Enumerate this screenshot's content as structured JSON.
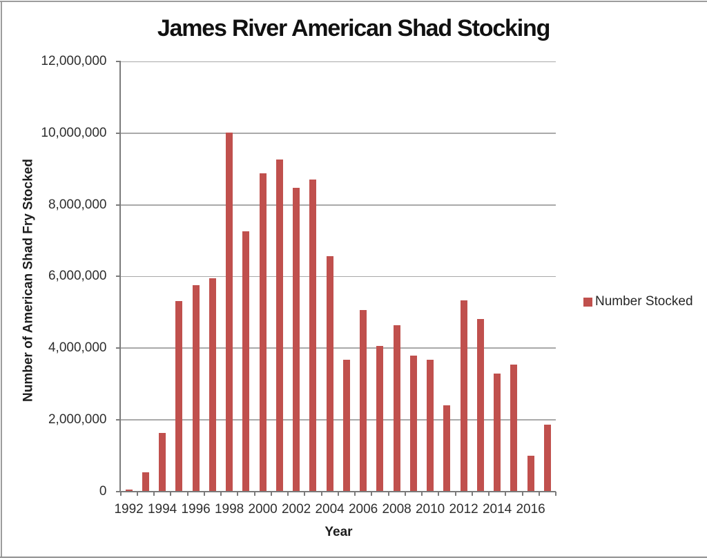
{
  "chart_data": {
    "type": "bar",
    "title": "James River American Shad Stocking",
    "xlabel": "Year",
    "ylabel": "Number of American Shad Fry Stocked",
    "legend_entries": [
      "Number Stocked"
    ],
    "legend_position": "right",
    "categories": [
      1992,
      1993,
      1994,
      1995,
      1996,
      1997,
      1998,
      1999,
      2000,
      2001,
      2002,
      2003,
      2004,
      2005,
      2006,
      2007,
      2008,
      2009,
      2010,
      2011,
      2012,
      2013,
      2014,
      2015,
      2016,
      2017
    ],
    "series": [
      {
        "name": "Number Stocked",
        "values": [
          50000,
          530000,
          1630000,
          5320000,
          5760000,
          5950000,
          10020000,
          7270000,
          8890000,
          9260000,
          8480000,
          8700000,
          6570000,
          3670000,
          5060000,
          4060000,
          4640000,
          3790000,
          3670000,
          2410000,
          5340000,
          4810000,
          3290000,
          3540000,
          1000000,
          1870000
        ]
      }
    ],
    "ylim": [
      0,
      12000000
    ],
    "ytick_step": 2000000,
    "ytick_labels": [
      "0",
      "2,000,000",
      "4,000,000",
      "6,000,000",
      "8,000,000",
      "10,000,000",
      "12,000,000"
    ],
    "xtick_labels": [
      "1992",
      "1994",
      "1996",
      "1998",
      "2000",
      "2002",
      "2004",
      "2006",
      "2008",
      "2010",
      "2012",
      "2014",
      "2016"
    ],
    "x_label_every": 2,
    "grid": "horizontal-major",
    "colors": {
      "bar": "#C0504D",
      "gridline": "#A9A9A9",
      "axis": "#7A7A7A",
      "frame": "#9C9C9C",
      "title_text": "#111111",
      "axis_title_text": "#1D1D1D",
      "tick_label_text": "#2E2E2E",
      "background": "#FFFFFF"
    }
  }
}
